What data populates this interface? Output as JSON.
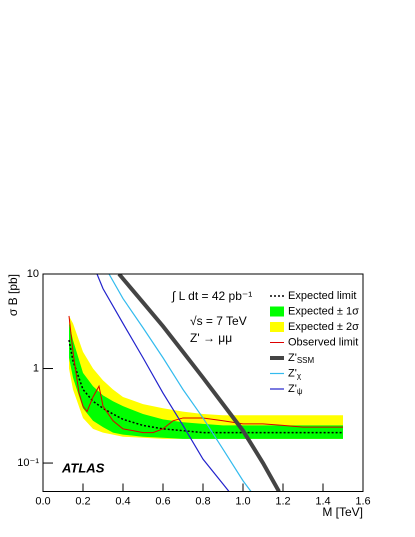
{
  "chart_data": {
    "type": "line",
    "xlabel": "M [TeV]",
    "ylabel": "σ B [pb]",
    "logy": true,
    "legend": "upper right",
    "xlim": [
      0,
      1.6
    ],
    "ylim": [
      0.05,
      10
    ],
    "xticks": [
      {
        "value": 0,
        "label": "0.0"
      },
      0.2,
      0.4,
      0.6,
      0.8,
      {
        "value": 1,
        "label": "1.0"
      },
      1.2,
      1.4,
      1.6
    ],
    "yticks": [
      {
        "value": 0.1,
        "label": "10⁻¹"
      },
      1,
      10
    ],
    "annotations": [
      "ATLAS",
      "∫ L dt = 42 pb⁻¹",
      "√s = 7 TeV",
      "Z' → μμ"
    ],
    "series": [
      {
        "name": "Expected limit",
        "color": "#000000",
        "dash": true,
        "x": [
          0.13,
          0.15,
          0.2,
          0.25,
          0.3,
          0.35,
          0.4,
          0.5,
          0.6,
          0.7,
          0.8,
          0.9,
          1.0,
          1.1,
          1.2,
          1.3,
          1.4,
          1.5
        ],
        "values": [
          2.0,
          1.2,
          0.6,
          0.45,
          0.38,
          0.33,
          0.29,
          0.25,
          0.23,
          0.22,
          0.21,
          0.21,
          0.21,
          0.21,
          0.21,
          0.21,
          0.21,
          0.21
        ]
      },
      {
        "name": "Expected ± 1σ",
        "color": "#00ff00",
        "x": [
          0.13,
          0.15,
          0.2,
          0.25,
          0.3,
          0.35,
          0.4,
          0.5,
          0.6,
          0.7,
          0.8,
          0.9,
          1.0,
          1.1,
          1.2,
          1.3,
          1.4,
          1.5
        ],
        "low": [
          1.3,
          0.8,
          0.38,
          0.28,
          0.24,
          0.21,
          0.2,
          0.19,
          0.185,
          0.18,
          0.18,
          0.18,
          0.18,
          0.18,
          0.18,
          0.18,
          0.18,
          0.18
        ],
        "high": [
          3.0,
          2.0,
          0.9,
          0.65,
          0.52,
          0.45,
          0.4,
          0.33,
          0.29,
          0.27,
          0.26,
          0.25,
          0.25,
          0.25,
          0.25,
          0.25,
          0.25,
          0.25
        ]
      },
      {
        "name": "Expected ± 2σ",
        "color": "#ffff00",
        "x": [
          0.13,
          0.15,
          0.2,
          0.25,
          0.3,
          0.35,
          0.4,
          0.5,
          0.6,
          0.7,
          0.8,
          0.9,
          1.0,
          1.1,
          1.2,
          1.3,
          1.4,
          1.5
        ],
        "low": [
          1.0,
          0.6,
          0.3,
          0.23,
          0.21,
          0.2,
          0.19,
          0.185,
          0.18,
          0.18,
          0.18,
          0.18,
          0.18,
          0.18,
          0.18,
          0.18,
          0.18,
          0.18
        ],
        "high": [
          3.6,
          3.0,
          1.5,
          1.0,
          0.75,
          0.6,
          0.5,
          0.42,
          0.38,
          0.35,
          0.33,
          0.32,
          0.32,
          0.32,
          0.32,
          0.32,
          0.32,
          0.32
        ]
      },
      {
        "name": "Observed limit",
        "color": "#dd0000",
        "width": 1,
        "x": [
          0.13,
          0.15,
          0.18,
          0.2,
          0.22,
          0.25,
          0.28,
          0.3,
          0.35,
          0.4,
          0.45,
          0.5,
          0.55,
          0.6,
          0.65,
          0.7,
          0.8,
          0.9,
          1.0,
          1.1,
          1.2,
          1.3,
          1.4,
          1.5
        ],
        "values": [
          3.6,
          1.5,
          0.55,
          0.4,
          0.35,
          0.5,
          0.65,
          0.4,
          0.28,
          0.23,
          0.22,
          0.21,
          0.21,
          0.23,
          0.28,
          0.3,
          0.3,
          0.28,
          0.26,
          0.26,
          0.25,
          0.24,
          0.24,
          0.24
        ]
      },
      {
        "name": "Z'",
        "sub": "SSM",
        "color": "#444444",
        "width": 4,
        "x": [
          0.38,
          0.5,
          0.6,
          0.7,
          0.8,
          0.9,
          1.0,
          1.1,
          1.18
        ],
        "values": [
          10,
          5,
          2.8,
          1.5,
          0.8,
          0.42,
          0.22,
          0.1,
          0.05
        ]
      },
      {
        "name": "Z'",
        "sub": "χ",
        "color": "#33bbee",
        "width": 1.2,
        "x": [
          0.33,
          0.4,
          0.5,
          0.6,
          0.7,
          0.8,
          0.9,
          1.0,
          1.04
        ],
        "values": [
          10,
          5.5,
          2.7,
          1.3,
          0.6,
          0.3,
          0.14,
          0.065,
          0.05
        ]
      },
      {
        "name": "Z'",
        "sub": "ψ",
        "color": "#2222cc",
        "width": 1.2,
        "x": [
          0.27,
          0.3,
          0.4,
          0.5,
          0.6,
          0.7,
          0.8,
          0.9,
          0.93
        ],
        "values": [
          10,
          7,
          3,
          1.3,
          0.55,
          0.25,
          0.11,
          0.06,
          0.05
        ]
      }
    ]
  }
}
